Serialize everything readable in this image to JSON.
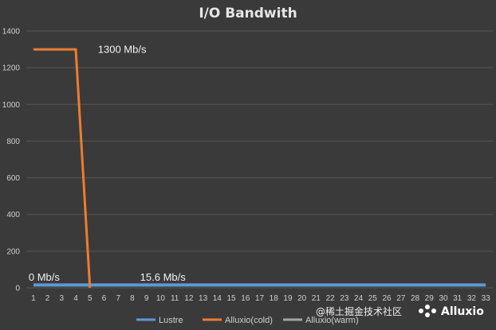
{
  "chart_data": {
    "type": "line",
    "title": "I/O Bandwith",
    "xlabel": "",
    "ylabel": "",
    "categories": [
      "1",
      "2",
      "3",
      "4",
      "5",
      "6",
      "7",
      "8",
      "9",
      "10",
      "11",
      "12",
      "13",
      "14",
      "15",
      "16",
      "17",
      "18",
      "19",
      "20",
      "21",
      "22",
      "23",
      "24",
      "25",
      "26",
      "27",
      "28",
      "29",
      "30",
      "31",
      "32",
      "33"
    ],
    "ylim": [
      0,
      1400
    ],
    "yticks": [
      0,
      200,
      400,
      600,
      800,
      1000,
      1200,
      1400
    ],
    "grid": true,
    "legend_position": "bottom",
    "series": [
      {
        "name": "Lustre",
        "color": "#5b9bd5",
        "values": [
          15.6,
          15.6,
          15.6,
          15.6,
          15.6,
          15.6,
          15.6,
          15.6,
          15.6,
          15.6,
          15.6,
          15.6,
          15.6,
          15.6,
          15.6,
          15.6,
          15.6,
          15.6,
          15.6,
          15.6,
          15.6,
          15.6,
          15.6,
          15.6,
          15.6,
          15.6,
          15.6,
          15.6,
          15.6,
          15.6,
          15.6,
          15.6,
          15.6
        ]
      },
      {
        "name": "Alluxio(cold)",
        "color": "#ed7d31",
        "values": [
          1300,
          1300,
          1300,
          1300,
          0,
          null,
          null,
          null,
          null,
          null,
          null,
          null,
          null,
          null,
          null,
          null,
          null,
          null,
          null,
          null,
          null,
          null,
          null,
          null,
          null,
          null,
          null,
          null,
          null,
          null,
          null,
          null,
          null
        ]
      },
      {
        "name": "Alluxio(warm)",
        "color": "#a5a5a5",
        "values": [
          null,
          null,
          null,
          null,
          null,
          null,
          null,
          null,
          null,
          null,
          null,
          null,
          null,
          null,
          null,
          null,
          null,
          null,
          null,
          null,
          null,
          null,
          null,
          null,
          null,
          null,
          null,
          null,
          null,
          null,
          null,
          null,
          null
        ]
      }
    ],
    "annotations": [
      {
        "text": "1300 Mb/s",
        "x": "5",
        "y": 1280
      },
      {
        "text": "0 Mb/s",
        "x": "1",
        "y": 40
      },
      {
        "text": "15.6 Mb/s",
        "x": "9",
        "y": 40
      }
    ]
  },
  "watermark": {
    "prefix": "@稀土掘金技术社区",
    "brand": "Alluxio"
  }
}
